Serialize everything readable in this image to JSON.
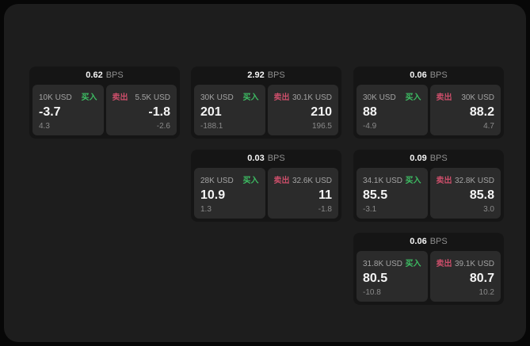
{
  "labels": {
    "buy": "买入",
    "sell": "卖出",
    "bps_unit": "BPS"
  },
  "colors": {
    "page_bg": "#070707",
    "panel_bg": "#1d1d1d",
    "card_bg": "#151515",
    "tile_bg": "#2b2b2b",
    "buy_green": "#3dbd63",
    "sell_red": "#cb4e6a"
  },
  "cards": [
    {
      "bps": "0.62",
      "buy": {
        "amount": "10K USD",
        "value": "-3.7",
        "delta": "4.3"
      },
      "sell": {
        "amount": "5.5K USD",
        "value": "-1.8",
        "delta": "-2.6"
      }
    },
    {
      "bps": "2.92",
      "buy": {
        "amount": "30K USD",
        "value": "201",
        "delta": "-188.1"
      },
      "sell": {
        "amount": "30.1K USD",
        "value": "210",
        "delta": "196.5"
      }
    },
    {
      "bps": "0.06",
      "buy": {
        "amount": "30K USD",
        "value": "88",
        "delta": "-4.9"
      },
      "sell": {
        "amount": "30K USD",
        "value": "88.2",
        "delta": "4.7"
      }
    },
    {
      "bps": "0.03",
      "buy": {
        "amount": "28K USD",
        "value": "10.9",
        "delta": "1.3"
      },
      "sell": {
        "amount": "32.6K USD",
        "value": "11",
        "delta": "-1.8"
      }
    },
    {
      "bps": "0.09",
      "buy": {
        "amount": "34.1K USD",
        "value": "85.5",
        "delta": "-3.1"
      },
      "sell": {
        "amount": "32.8K USD",
        "value": "85.8",
        "delta": "3.0"
      }
    },
    {
      "bps": "0.06",
      "buy": {
        "amount": "31.8K USD",
        "value": "80.5",
        "delta": "-10.8"
      },
      "sell": {
        "amount": "39.1K USD",
        "value": "80.7",
        "delta": "10.2"
      }
    }
  ]
}
